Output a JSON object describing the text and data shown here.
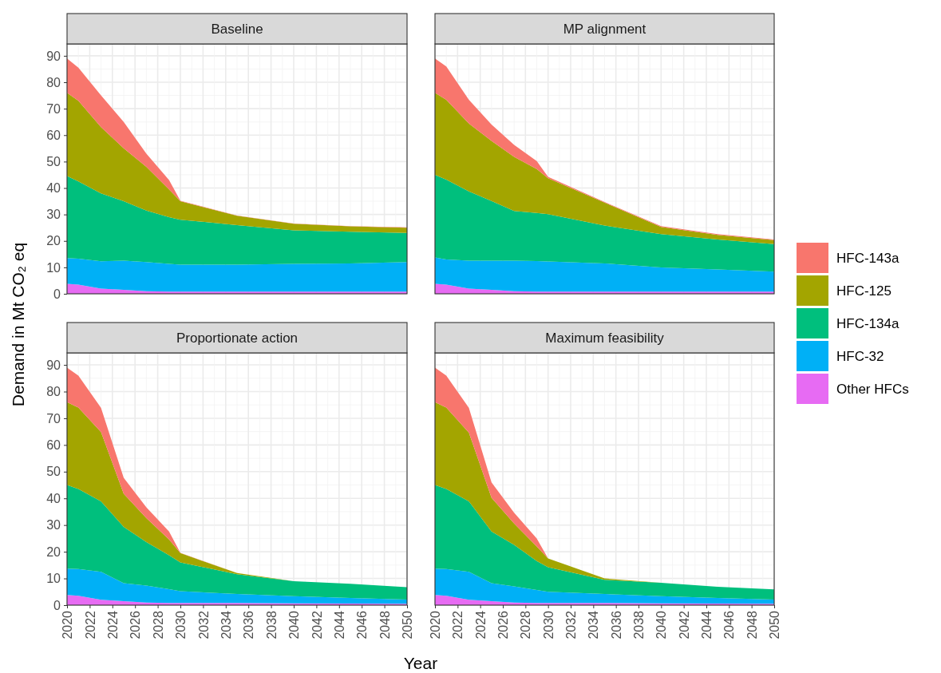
{
  "chart_data": [
    {
      "type": "area",
      "title": "Baseline",
      "ylabel": "Demand in Mt CO₂ eq",
      "stacked": true,
      "grid": true,
      "tick_labels": "y",
      "legend": "right",
      "x": [
        2020,
        2021,
        2023,
        2025,
        2027,
        2029,
        2030,
        2035,
        2040,
        2045,
        2050
      ],
      "xlim": [
        2020,
        2050
      ],
      "xticks": [
        2020,
        2022,
        2024,
        2026,
        2028,
        2030,
        2032,
        2034,
        2036,
        2038,
        2040,
        2042,
        2044,
        2046,
        2048,
        2050
      ],
      "ylim": [
        0,
        94.5
      ],
      "yticks": [
        0,
        10,
        20,
        30,
        40,
        50,
        60,
        70,
        80,
        90
      ],
      "series": [
        {
          "name": "Other HFCs",
          "color": "#e76bf3",
          "values": [
            3.8,
            3.5,
            2,
            1.5,
            1,
            0.8,
            0.8,
            0.8,
            0.8,
            0.8,
            0.8
          ]
        },
        {
          "name": "HFC-32",
          "color": "#00b0f6",
          "values": [
            9.7,
            9.8,
            10.3,
            11,
            11,
            10.5,
            10.2,
            10.2,
            10.5,
            10.7,
            11.2
          ]
        },
        {
          "name": "HFC-134a",
          "color": "#00bf7d",
          "values": [
            31,
            29.2,
            25.7,
            22.5,
            19.5,
            17.7,
            17,
            15,
            12.7,
            12,
            11
          ]
        },
        {
          "name": "HFC-125",
          "color": "#a3a500",
          "values": [
            31.5,
            30.5,
            25,
            20,
            16.5,
            10.5,
            7,
            3.5,
            2.5,
            2,
            2
          ]
        },
        {
          "name": "HFC-143a",
          "color": "#f8766d",
          "values": [
            13,
            12.5,
            12,
            10,
            5,
            3.5,
            0.2,
            0.1,
            0.1,
            0.1,
            0.1
          ]
        }
      ]
    },
    {
      "type": "area",
      "title": "MP alignment",
      "stacked": true,
      "grid": true,
      "tick_labels": false,
      "x": [
        2020,
        2021,
        2023,
        2025,
        2027,
        2029,
        2030,
        2035,
        2040,
        2045,
        2050
      ],
      "xlim": [
        2020,
        2050
      ],
      "xticks": [
        2020,
        2022,
        2024,
        2026,
        2028,
        2030,
        2032,
        2034,
        2036,
        2038,
        2040,
        2042,
        2044,
        2046,
        2048,
        2050
      ],
      "ylim": [
        0,
        94.5
      ],
      "yticks": [
        0,
        10,
        20,
        30,
        40,
        50,
        60,
        70,
        80,
        90
      ],
      "series": [
        {
          "color": "#e76bf3",
          "values": [
            3.8,
            3.5,
            2,
            1.5,
            1,
            0.8,
            0.8,
            0.8,
            0.8,
            0.8,
            0.8
          ]
        },
        {
          "color": "#00b0f6",
          "values": [
            9.9,
            9.5,
            10.5,
            11,
            11.5,
            11.6,
            11.4,
            10.7,
            9.2,
            8.4,
            7.6
          ]
        },
        {
          "color": "#00bf7d",
          "values": [
            31.3,
            30.2,
            26.2,
            22.6,
            18.8,
            18.2,
            17.9,
            14.3,
            12.6,
            11.3,
            10.4
          ]
        },
        {
          "color": "#a3a500",
          "values": [
            31,
            30.2,
            25.7,
            22.7,
            20.5,
            16.6,
            13.6,
            8.7,
            2.7,
            1.8,
            1.5
          ]
        },
        {
          "color": "#f8766d",
          "values": [
            13,
            12.6,
            9,
            6.2,
            4.5,
            3,
            0.5,
            0.2,
            0.3,
            0.3,
            0.2
          ]
        }
      ]
    },
    {
      "type": "area",
      "title": "Proportionate action",
      "xlabel": "Year",
      "stacked": true,
      "grid": true,
      "x": [
        2020,
        2021,
        2023,
        2025,
        2027,
        2029,
        2030,
        2035,
        2040,
        2045,
        2050
      ],
      "xlim": [
        2020,
        2050
      ],
      "xticks": [
        2020,
        2022,
        2024,
        2026,
        2028,
        2030,
        2032,
        2034,
        2036,
        2038,
        2040,
        2042,
        2044,
        2046,
        2048,
        2050
      ],
      "ylim": [
        0,
        94.5
      ],
      "yticks": [
        0,
        10,
        20,
        30,
        40,
        50,
        60,
        70,
        80,
        90
      ],
      "series": [
        {
          "color": "#e76bf3",
          "values": [
            3.8,
            3.5,
            2,
            1.5,
            1,
            0.8,
            0.8,
            0.8,
            0.7,
            0.6,
            0.5
          ]
        },
        {
          "color": "#00b0f6",
          "values": [
            9.9,
            10,
            10.5,
            6.7,
            6.3,
            5.2,
            4.4,
            3.4,
            2.7,
            2.1,
            1.6
          ]
        },
        {
          "color": "#00bf7d",
          "values": [
            31.3,
            30,
            26.4,
            21.1,
            16.3,
            12.7,
            10.8,
            7.4,
            5.6,
            5.3,
            4.6
          ]
        },
        {
          "color": "#a3a500",
          "values": [
            31,
            30.5,
            25.9,
            12.4,
            9,
            5.9,
            3.5,
            0.4,
            0,
            0,
            0
          ]
        },
        {
          "color": "#f8766d",
          "values": [
            13,
            12,
            9.1,
            6,
            4,
            3,
            0.1,
            0,
            0,
            0,
            0
          ]
        }
      ]
    },
    {
      "type": "area",
      "title": "Maximum feasibility",
      "stacked": true,
      "grid": true,
      "tick_labels": "x",
      "x": [
        2020,
        2021,
        2023,
        2025,
        2027,
        2029,
        2030,
        2035,
        2040,
        2045,
        2050
      ],
      "xlim": [
        2020,
        2050
      ],
      "xticks": [
        2020,
        2022,
        2024,
        2026,
        2028,
        2030,
        2032,
        2034,
        2036,
        2038,
        2040,
        2042,
        2044,
        2046,
        2048,
        2050
      ],
      "ylim": [
        0,
        94.5
      ],
      "yticks": [
        0,
        10,
        20,
        30,
        40,
        50,
        60,
        70,
        80,
        90
      ],
      "series": [
        {
          "color": "#e76bf3",
          "values": [
            3.8,
            3.5,
            2,
            1.5,
            1,
            0.8,
            0.8,
            0.8,
            0.7,
            0.6,
            0.5
          ]
        },
        {
          "color": "#00b0f6",
          "values": [
            9.9,
            10,
            10.5,
            6.7,
            6,
            4.9,
            4.2,
            3.4,
            2.7,
            2.1,
            1.6
          ]
        },
        {
          "color": "#00bf7d",
          "values": [
            31.3,
            30,
            26.4,
            19.4,
            15.6,
            10.8,
            9.2,
            5.3,
            5,
            4.2,
            3.8
          ]
        },
        {
          "color": "#a3a500",
          "values": [
            31,
            30.5,
            25.7,
            12.6,
            8,
            5.5,
            3.3,
            0.5,
            0,
            0,
            0
          ]
        },
        {
          "color": "#f8766d",
          "values": [
            13,
            12,
            9.3,
            5.8,
            4,
            3,
            0,
            0,
            0,
            0,
            0
          ]
        }
      ]
    }
  ]
}
